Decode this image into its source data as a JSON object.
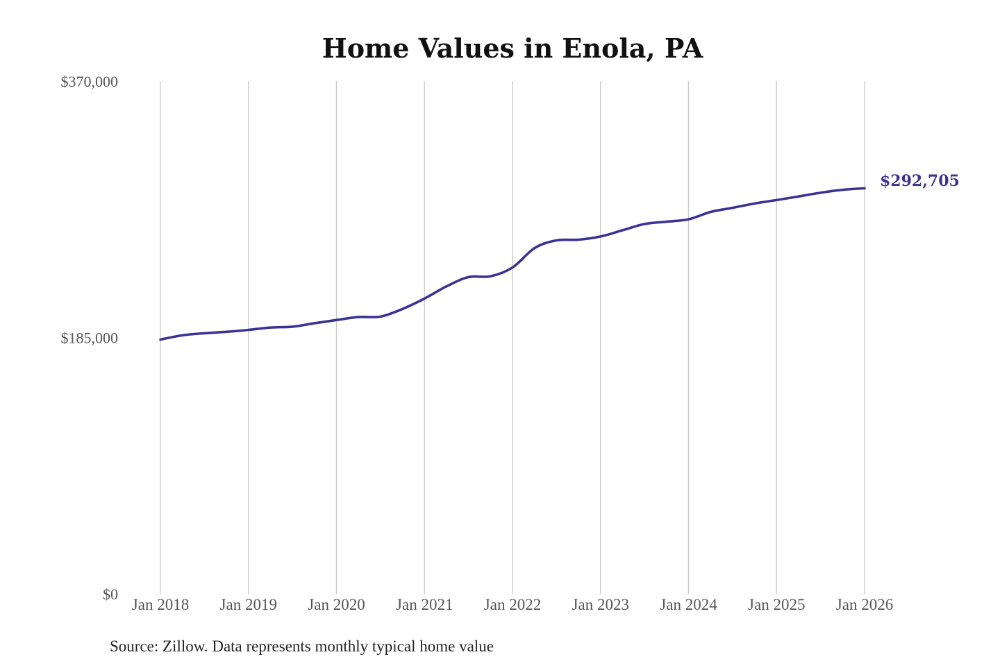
{
  "chart_data": {
    "type": "line",
    "title": "Home Values in Enola, PA",
    "xlabel": "",
    "ylabel": "",
    "ylim": [
      0,
      370000
    ],
    "xlim": [
      "2018-01",
      "2026-01"
    ],
    "grid": "vertical",
    "y_ticks": [
      {
        "value": 0,
        "label": "$0"
      },
      {
        "value": 185000,
        "label": "$185,000"
      },
      {
        "value": 370000,
        "label": "$370,000"
      }
    ],
    "x_ticks": [
      {
        "date": "2018-01",
        "label": "Jan 2018"
      },
      {
        "date": "2019-01",
        "label": "Jan 2019"
      },
      {
        "date": "2020-01",
        "label": "Jan 2020"
      },
      {
        "date": "2021-01",
        "label": "Jan 2021"
      },
      {
        "date": "2022-01",
        "label": "Jan 2022"
      },
      {
        "date": "2023-01",
        "label": "Jan 2023"
      },
      {
        "date": "2024-01",
        "label": "Jan 2024"
      },
      {
        "date": "2025-01",
        "label": "Jan 2025"
      },
      {
        "date": "2026-01",
        "label": "Jan 2026"
      }
    ],
    "series": [
      {
        "color": "#3b3394",
        "points": [
          {
            "x": "2018-01",
            "y": 183500
          },
          {
            "x": "2018-04",
            "y": 186600
          },
          {
            "x": "2018-07",
            "y": 188100
          },
          {
            "x": "2018-10",
            "y": 189100
          },
          {
            "x": "2019-01",
            "y": 190500
          },
          {
            "x": "2019-04",
            "y": 192200
          },
          {
            "x": "2019-07",
            "y": 192800
          },
          {
            "x": "2019-10",
            "y": 195300
          },
          {
            "x": "2020-01",
            "y": 197600
          },
          {
            "x": "2020-04",
            "y": 199800
          },
          {
            "x": "2020-07",
            "y": 200100
          },
          {
            "x": "2020-10",
            "y": 205600
          },
          {
            "x": "2021-01",
            "y": 213100
          },
          {
            "x": "2021-04",
            "y": 221900
          },
          {
            "x": "2021-07",
            "y": 228600
          },
          {
            "x": "2021-10",
            "y": 229200
          },
          {
            "x": "2022-01",
            "y": 235500
          },
          {
            "x": "2022-04",
            "y": 249500
          },
          {
            "x": "2022-07",
            "y": 255100
          },
          {
            "x": "2022-10",
            "y": 255600
          },
          {
            "x": "2023-01",
            "y": 257900
          },
          {
            "x": "2023-04",
            "y": 262400
          },
          {
            "x": "2023-07",
            "y": 266900
          },
          {
            "x": "2023-10",
            "y": 268600
          },
          {
            "x": "2024-01",
            "y": 270300
          },
          {
            "x": "2024-04",
            "y": 275600
          },
          {
            "x": "2024-07",
            "y": 278600
          },
          {
            "x": "2024-10",
            "y": 281700
          },
          {
            "x": "2025-01",
            "y": 284200
          },
          {
            "x": "2025-04",
            "y": 286800
          },
          {
            "x": "2025-07",
            "y": 289500
          },
          {
            "x": "2025-10",
            "y": 291600
          },
          {
            "x": "2026-01",
            "y": 292705
          }
        ]
      }
    ],
    "end_label": {
      "text": "$292,705",
      "color": "#3b3394"
    },
    "source_note": "Source: Zillow. Data represents monthly typical home value"
  }
}
